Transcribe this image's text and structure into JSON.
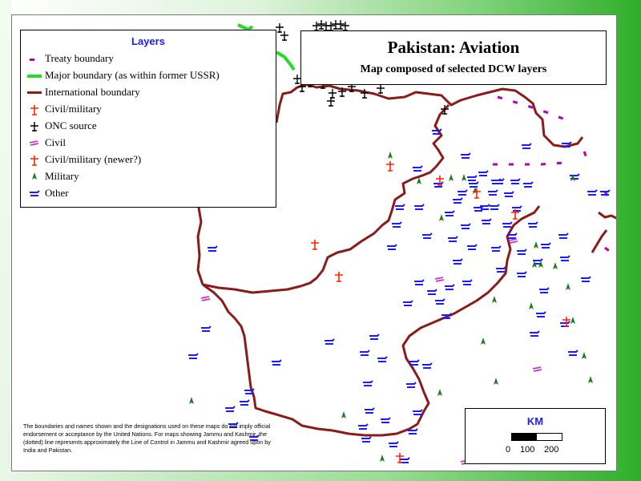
{
  "title": "Pakistan:  Aviation",
  "subtitle": "Map composed of selected DCW layers",
  "legend": {
    "title": "Layers",
    "items": [
      {
        "label": "Treaty boundary",
        "symbol": "dash-icon",
        "color": "#b300b3"
      },
      {
        "label": "Major boundary (as within former USSR)",
        "symbol": "line-icon",
        "color": "#22dd22"
      },
      {
        "label": "International boundary",
        "symbol": "line-icon",
        "color": "#8b1a1a"
      },
      {
        "label": "Civil/military",
        "symbol": "cross-plane-icon",
        "color": "#ff2200"
      },
      {
        "label": "ONC source",
        "symbol": "plane-icon",
        "color": "#000000"
      },
      {
        "label": "Civil",
        "symbol": "civil-plane-icon",
        "color": "#cc33cc"
      },
      {
        "label": "Civil/military (newer?)",
        "symbol": "cross-plane-icon",
        "color": "#ff2200"
      },
      {
        "label": "Military",
        "symbol": "military-icon",
        "color": "#1a7a1a"
      },
      {
        "label": "Other",
        "symbol": "airstrip-icon",
        "color": "#1a1aff"
      }
    ]
  },
  "disclaimer": "The boundaries and names shown and the designations used on these maps do not imply official endorsement or acceptance by the United Nations.  For maps showing Jammu and Kashmir, the (dotted) line represents approximately the Line of Control in Jammu and Kashmir agreed upon by India and Pakistan.",
  "scale": {
    "title": "KM",
    "ticks": [
      "0",
      "100",
      "200"
    ]
  },
  "colors": {
    "international_boundary": "#8b1a1a",
    "major_boundary": "#22dd22",
    "treaty_boundary": "#b300b3",
    "other": "#1a1aff",
    "military": "#1a7a1a",
    "civil": "#cc33cc",
    "civil_military": "#ff2200",
    "onc": "#000000"
  }
}
